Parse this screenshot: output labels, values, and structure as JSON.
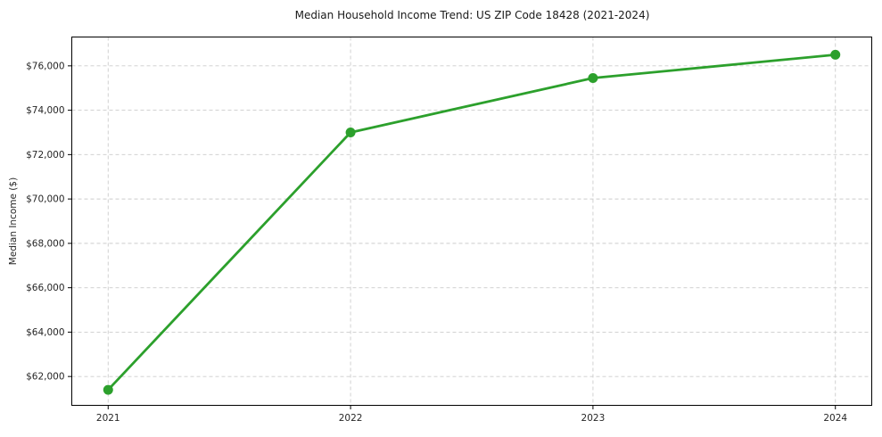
{
  "figure": {
    "title": "Median Household Income Trend: US ZIP Code 18428 (2021-2024)"
  },
  "chart_data": {
    "type": "line",
    "title": "Median Household Income Trend: US ZIP Code 18428 (2021-2024)",
    "xlabel": "",
    "ylabel": "Median Income ($)",
    "categories": [
      "2021",
      "2022",
      "2023",
      "2024"
    ],
    "series": [
      {
        "name": "Median Household Income",
        "values": [
          61400,
          73000,
          75450,
          76500
        ],
        "color": "#2ca02c",
        "marker": "circle"
      }
    ],
    "ylim": [
      60700,
      77300
    ],
    "yticks": [
      62000,
      64000,
      66000,
      68000,
      70000,
      72000,
      74000,
      76000
    ],
    "ytick_labels": [
      "$62,000",
      "$64,000",
      "$66,000",
      "$68,000",
      "$70,000",
      "$72,000",
      "$74,000",
      "$76,000"
    ],
    "grid": true,
    "grid_style": "dashed",
    "legend_position": "none"
  },
  "colors": {
    "line": "#2ca02c",
    "grid": "#cccccc",
    "axis": "#000000",
    "text": "#262626",
    "background": "#ffffff"
  }
}
